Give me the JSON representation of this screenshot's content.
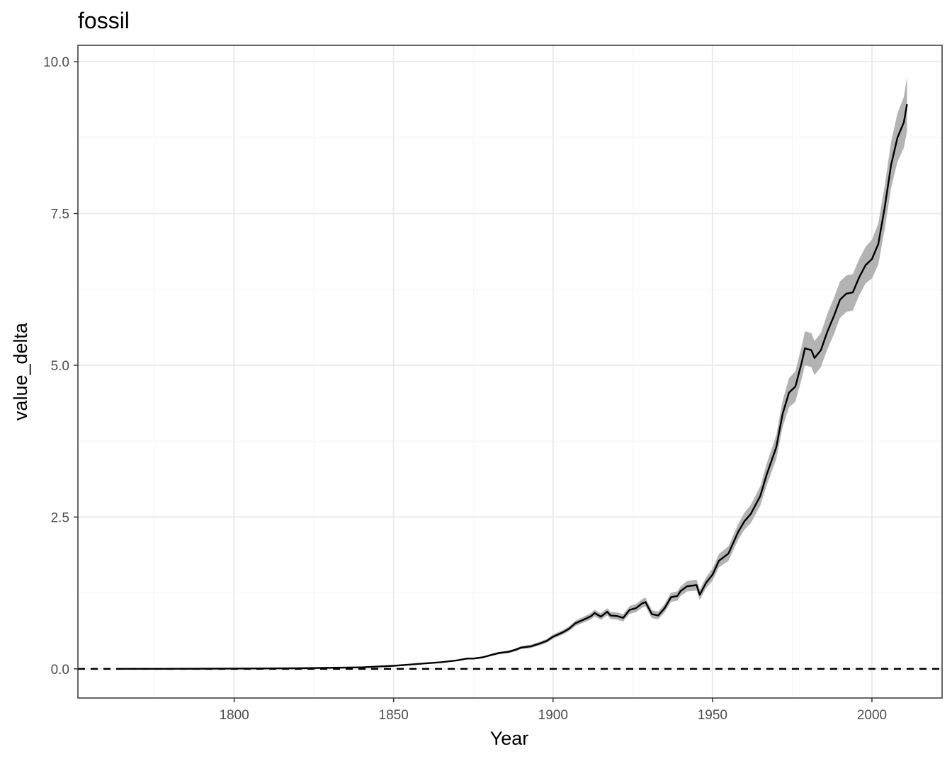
{
  "chart_data": {
    "type": "line",
    "title": "fossil",
    "xlabel": "Year",
    "ylabel": "value_delta",
    "xlim": [
      1751,
      2022
    ],
    "ylim": [
      -0.48,
      10.27
    ],
    "x_ticks": [
      1800,
      1850,
      1900,
      1950,
      2000
    ],
    "x_tick_labels": [
      "1800",
      "1850",
      "1900",
      "1950",
      "2000"
    ],
    "y_ticks": [
      0,
      2.5,
      5,
      7.5,
      10
    ],
    "y_tick_labels": [
      "0.0",
      "2.5",
      "5.0",
      "7.5",
      "10.0"
    ],
    "grid": true,
    "reference_line": {
      "y": 0,
      "style": "dashed",
      "color": "#000000"
    },
    "colors": {
      "line": "#000000",
      "ribbon": "#b3b3b3",
      "grid_major": "#ebebeb",
      "grid_minor": "#f4f4f4",
      "panel_border": "#333333"
    },
    "series": [
      {
        "x": [
          1765,
          1780,
          1800,
          1820,
          1840,
          1850,
          1855,
          1860,
          1865,
          1870,
          1873,
          1875,
          1878,
          1880,
          1883,
          1886,
          1888,
          1890,
          1893,
          1896,
          1898,
          1900,
          1903,
          1905,
          1907,
          1910,
          1912,
          1913,
          1915,
          1917,
          1918,
          1920,
          1922,
          1924,
          1926,
          1928,
          1929,
          1931,
          1933,
          1935,
          1937,
          1939,
          1940,
          1942,
          1945,
          1946,
          1948,
          1950,
          1952,
          1955,
          1958,
          1960,
          1962,
          1965,
          1967,
          1970,
          1972,
          1974,
          1976,
          1978,
          1979,
          1981,
          1982,
          1984,
          1986,
          1988,
          1990,
          1992,
          1994,
          1996,
          1998,
          2000,
          2002,
          2004,
          2006,
          2008,
          2010,
          2011
        ],
        "y": [
          0.0,
          0.0,
          0.005,
          0.01,
          0.025,
          0.05,
          0.07,
          0.09,
          0.11,
          0.14,
          0.17,
          0.17,
          0.19,
          0.22,
          0.26,
          0.28,
          0.31,
          0.35,
          0.37,
          0.42,
          0.46,
          0.53,
          0.6,
          0.66,
          0.75,
          0.82,
          0.87,
          0.92,
          0.86,
          0.94,
          0.88,
          0.87,
          0.84,
          0.97,
          1.0,
          1.08,
          1.1,
          0.9,
          0.88,
          1.0,
          1.18,
          1.2,
          1.28,
          1.36,
          1.38,
          1.22,
          1.42,
          1.55,
          1.78,
          1.9,
          2.25,
          2.43,
          2.55,
          2.85,
          3.2,
          3.65,
          4.2,
          4.55,
          4.65,
          5.05,
          5.28,
          5.25,
          5.12,
          5.25,
          5.55,
          5.8,
          6.08,
          6.18,
          6.2,
          6.45,
          6.65,
          6.75,
          7.0,
          7.6,
          8.3,
          8.75,
          9.0,
          9.3
        ],
        "ribbon_halfwidth": [
          0.0,
          0.0,
          0.0,
          0.0,
          0.002,
          0.004,
          0.006,
          0.008,
          0.01,
          0.012,
          0.014,
          0.015,
          0.016,
          0.018,
          0.02,
          0.022,
          0.024,
          0.026,
          0.028,
          0.03,
          0.032,
          0.035,
          0.038,
          0.04,
          0.045,
          0.05,
          0.052,
          0.055,
          0.055,
          0.058,
          0.058,
          0.06,
          0.06,
          0.065,
          0.068,
          0.07,
          0.072,
          0.065,
          0.065,
          0.07,
          0.075,
          0.078,
          0.08,
          0.085,
          0.09,
          0.085,
          0.09,
          0.1,
          0.11,
          0.12,
          0.13,
          0.14,
          0.15,
          0.16,
          0.18,
          0.2,
          0.22,
          0.24,
          0.25,
          0.27,
          0.28,
          0.28,
          0.28,
          0.28,
          0.29,
          0.3,
          0.3,
          0.3,
          0.3,
          0.3,
          0.3,
          0.32,
          0.34,
          0.36,
          0.38,
          0.4,
          0.42,
          0.45
        ]
      }
    ]
  }
}
